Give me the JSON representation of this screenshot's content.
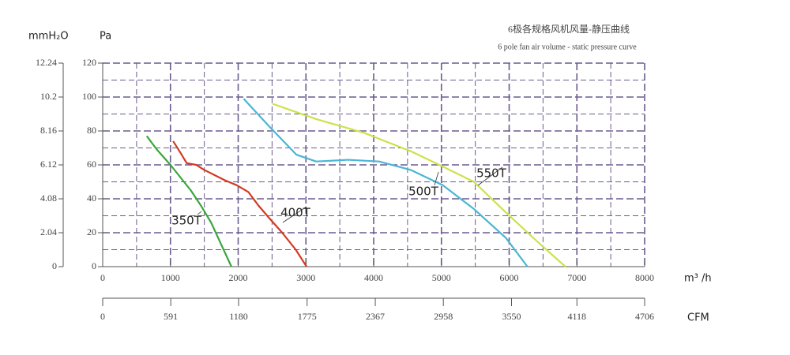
{
  "chart_data": {
    "type": "line",
    "title": "6极各规格风机风量-静压曲线",
    "subtitle": "6 pole fan air volume - static pressure curve",
    "y_label": "Pa",
    "y2_label": "mmH₂O",
    "x_label": "m³ /h",
    "x2_label": "CFM",
    "xlim": [
      0,
      8000
    ],
    "xticks": [
      0,
      1000,
      2000,
      3000,
      4000,
      5000,
      6000,
      7000,
      8000
    ],
    "x_minor_ticks": [
      500,
      1500,
      2500,
      3500,
      4500,
      5500,
      6500,
      7500
    ],
    "x2lim": [
      0,
      4706
    ],
    "x2ticks": [
      0,
      591,
      1180,
      1775,
      2367,
      2958,
      3550,
      4118,
      4706
    ],
    "ylim": [
      0,
      120
    ],
    "yticks": [
      0,
      20,
      40,
      60,
      80,
      100,
      120
    ],
    "y_minor_ticks": [
      10,
      30,
      50,
      70,
      90,
      110
    ],
    "y2lim": [
      0,
      12.24
    ],
    "y2ticks": [
      0,
      2.04,
      4.08,
      6.12,
      8.16,
      10.2,
      12.24
    ],
    "grid": true,
    "series": [
      {
        "name": "350T",
        "color": "#3aa63a",
        "x": [
          650,
          800,
          1000,
          1200,
          1300,
          1450,
          1600,
          1750,
          1900
        ],
        "values": [
          77,
          69,
          60,
          50,
          45,
          36,
          26,
          13,
          0
        ]
      },
      {
        "name": "400T",
        "color": "#d23a22",
        "x": [
          1040,
          1150,
          1240,
          1380,
          1500,
          1650,
          1800,
          1980,
          2150,
          2300,
          2450,
          2650,
          2850,
          3010
        ],
        "values": [
          74,
          67,
          61,
          60,
          57,
          54,
          51,
          48,
          44,
          36,
          29,
          20,
          10,
          0
        ]
      },
      {
        "name": "500T",
        "color": "#4ab6d2",
        "x": [
          2080,
          2450,
          2860,
          3150,
          3400,
          3620,
          4080,
          4550,
          5020,
          5480,
          5950,
          6270
        ],
        "values": [
          99,
          83,
          66,
          62,
          62.5,
          63,
          62,
          57,
          48,
          34,
          17,
          0
        ]
      },
      {
        "name": "550T",
        "color": "#cce24a",
        "x": [
          2510,
          3150,
          3850,
          4550,
          5020,
          5480,
          5950,
          6410,
          6830
        ],
        "values": [
          96,
          87,
          79,
          68,
          59,
          50,
          32,
          15,
          0
        ]
      }
    ]
  }
}
